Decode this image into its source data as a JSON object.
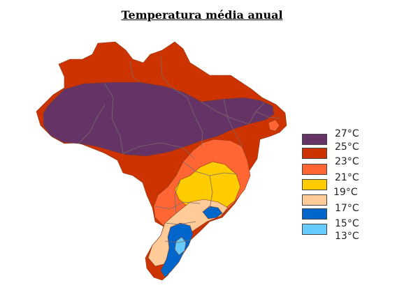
{
  "title": "Temperatura média anual",
  "legend": [
    {
      "label": "27°C",
      "color": "#663366"
    },
    {
      "label": "25°C",
      "color": "#cc3300"
    },
    {
      "label": "23°C",
      "color": "#ff6633"
    },
    {
      "label": "21°C",
      "color": "#ffcc00"
    },
    {
      "label": "19°C",
      "color": "#ffcc99"
    },
    {
      "label": "17°C",
      "color": "#0066cc"
    },
    {
      "label": "15°C",
      "color": "#66ccff"
    },
    {
      "label": "13°C",
      "color": ""
    }
  ],
  "colors": {
    "state_border": "#7a6a6a",
    "outline": "#8a3b1a"
  }
}
